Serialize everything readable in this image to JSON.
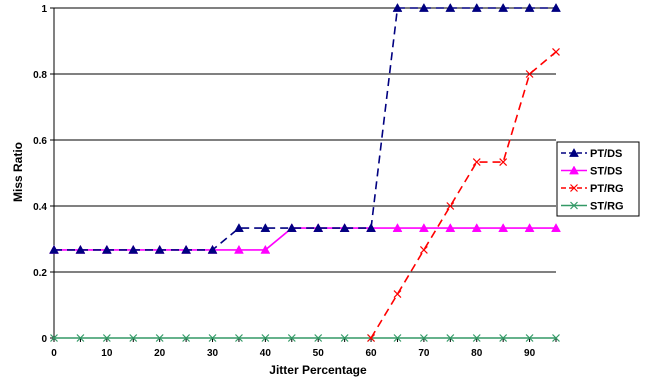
{
  "chart_data": {
    "type": "line",
    "xlabel": "Jitter Percentage",
    "ylabel": "Miss Ratio",
    "xlim": [
      0,
      95
    ],
    "ylim": [
      0,
      1
    ],
    "x_ticks": [
      "0",
      "10",
      "20",
      "30",
      "40",
      "50",
      "60",
      "70",
      "80",
      "90"
    ],
    "y_ticks": [
      "0",
      "0.2",
      "0.4",
      "0.6",
      "0.8",
      "1"
    ],
    "grid": "horizontal",
    "legend_position": "right",
    "x": [
      0,
      5,
      10,
      15,
      20,
      25,
      30,
      35,
      40,
      45,
      50,
      55,
      60,
      65,
      70,
      75,
      80,
      85,
      90,
      95
    ],
    "series": [
      {
        "name": "PT/DS",
        "color": "#000080",
        "marker": "triangle",
        "dash": "8,5",
        "values": [
          0.267,
          0.267,
          0.267,
          0.267,
          0.267,
          0.267,
          0.267,
          0.333,
          0.333,
          0.333,
          0.333,
          0.333,
          0.333,
          1,
          1,
          1,
          1,
          1,
          1,
          1
        ]
      },
      {
        "name": "ST/DS",
        "color": "#ff00ff",
        "marker": "triangle",
        "dash": "",
        "values": [
          0.267,
          0.267,
          0.267,
          0.267,
          0.267,
          0.267,
          0.267,
          0.267,
          0.267,
          0.333,
          0.333,
          0.333,
          0.333,
          0.333,
          0.333,
          0.333,
          0.333,
          0.333,
          0.333,
          0.333
        ]
      },
      {
        "name": "PT/RG",
        "color": "#ff0000",
        "marker": "x",
        "dash": "8,5",
        "values": [
          null,
          null,
          null,
          null,
          null,
          null,
          null,
          null,
          null,
          null,
          null,
          null,
          0,
          0.133,
          0.267,
          0.4,
          0.533,
          0.533,
          0.8,
          0.867
        ]
      },
      {
        "name": "ST/RG",
        "color": "#339966",
        "marker": "x",
        "dash": "",
        "values": [
          0,
          0,
          0,
          0,
          0,
          0,
          0,
          0,
          0,
          0,
          0,
          0,
          0,
          0,
          0,
          0,
          0,
          0,
          0,
          0
        ]
      }
    ]
  }
}
